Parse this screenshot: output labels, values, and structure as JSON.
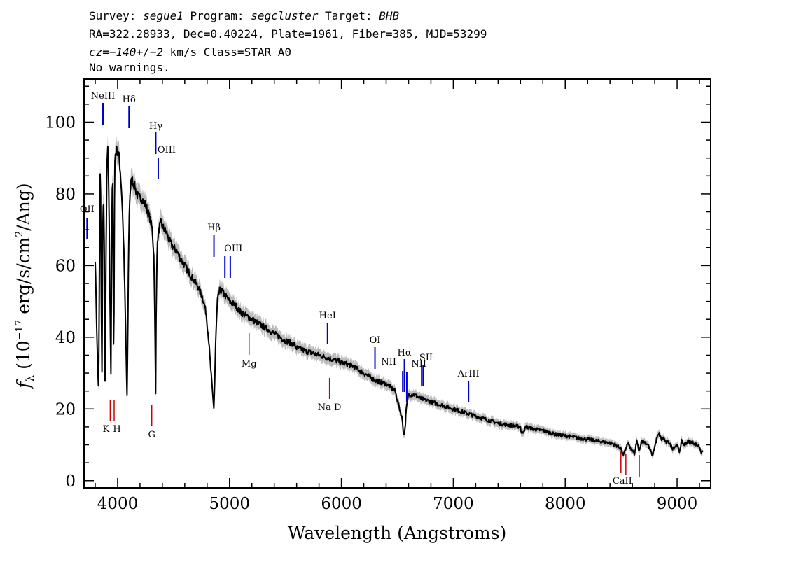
{
  "chart_data": {
    "type": "line",
    "header": {
      "line1_prefix": "Survey: ",
      "survey": "segue1",
      "line1_program_prefix": " Program: ",
      "program": "segcluster",
      "line1_target_prefix": " Target: ",
      "target": "BHB",
      "line2": "RA=322.28933, Dec=0.40224, Plate=1961, Fiber=385, MJD=53299",
      "line3_cz": "cz=−140+/−2",
      "line3_rest": " km/s Class=STAR A0",
      "line4": "No warnings."
    },
    "xlabel": "Wavelength (Angstroms)",
    "ylabel": "fλ (10⁻¹⁷ erg/s/cm²/Ang)",
    "ylabel_parts": {
      "f": "f",
      "lambda": "λ",
      "open": " (10",
      "exp1": "−17",
      "mid": " erg/s/cm",
      "exp2": "2",
      "close": "/Ang)"
    },
    "xlim": [
      3700,
      9300
    ],
    "ylim": [
      -2,
      112
    ],
    "xticks": [
      4000,
      5000,
      6000,
      7000,
      8000,
      9000
    ],
    "yticks": [
      0,
      20,
      40,
      60,
      80,
      100
    ],
    "grid": false,
    "legend": "none",
    "colors": {
      "flux": "#000000",
      "error_band": "#bdbdbd",
      "emission_marker": "#0000cc",
      "absorption_marker": "#cc0000",
      "frame": "#000000"
    },
    "series": [
      {
        "x": [
          3800,
          3815,
          3830,
          3836,
          3842,
          3847,
          3853,
          3860,
          3867,
          3875,
          3882,
          3889,
          3896,
          3904,
          3912,
          3922,
          3932,
          3940,
          3948,
          3955,
          3962,
          3966,
          3970,
          3974,
          3980,
          3990,
          4000,
          4010,
          4025,
          4040,
          4055,
          4070,
          4085,
          4095,
          4102,
          4110,
          4120,
          4130,
          4140,
          4155,
          4170,
          4190,
          4210,
          4230,
          4250,
          4270,
          4290,
          4310,
          4325,
          4335,
          4340,
          4345,
          4352,
          4360,
          4370,
          4385,
          4400,
          4420,
          4440,
          4460,
          4480,
          4500,
          4530,
          4560,
          4600,
          4640,
          4680,
          4720,
          4760,
          4790,
          4815,
          4830,
          4845,
          4855,
          4861,
          4868,
          4878,
          4892,
          4910,
          4930,
          4950,
          4980,
          5000,
          5050,
          5100,
          5150,
          5200,
          5300,
          5400,
          5500,
          5580,
          5600,
          5700,
          5800,
          5900,
          6000,
          6100,
          6200,
          6300,
          6400,
          6480,
          6520,
          6545,
          6555,
          6563,
          6570,
          6580,
          6600,
          6650,
          6700,
          6800,
          6900,
          7000,
          7100,
          7200,
          7300,
          7400,
          7500,
          7600,
          7610,
          7650,
          7700,
          7800,
          7900,
          8000,
          8100,
          8200,
          8300,
          8400,
          8450,
          8498,
          8520,
          8542,
          8560,
          8590,
          8620,
          8640,
          8662,
          8680,
          8700,
          8740,
          8780,
          8820,
          8840,
          8860,
          8880,
          8900,
          8920,
          8960,
          9000,
          9020,
          9040,
          9060,
          9100,
          9150,
          9200,
          9220,
          9230
        ],
        "y": [
          62,
          40,
          24,
          50,
          86,
          84,
          55,
          30,
          70,
          80,
          60,
          23,
          60,
          88,
          92,
          80,
          50,
          30,
          70,
          88,
          50,
          25,
          70,
          88,
          91,
          92,
          92,
          91,
          86,
          78,
          65,
          45,
          22,
          55,
          72,
          80,
          83,
          84,
          83,
          82,
          80,
          79,
          79,
          78,
          77,
          75,
          73,
          70,
          62,
          40,
          24,
          50,
          63,
          68,
          70,
          72,
          71,
          70,
          69,
          67,
          66,
          65,
          64,
          62,
          60,
          58,
          56,
          54,
          51,
          47,
          39,
          32,
          26,
          22,
          20,
          28,
          40,
          50,
          53,
          53,
          52,
          51,
          50,
          49,
          47,
          46,
          45,
          43,
          41,
          39,
          38,
          37,
          36,
          35,
          34,
          33,
          32,
          30,
          28,
          27,
          25,
          20,
          17,
          13,
          13,
          15,
          20,
          24,
          24,
          23,
          22,
          21,
          20,
          19,
          18,
          17,
          16,
          15.5,
          15,
          13,
          15,
          14.5,
          14,
          13,
          12.5,
          12,
          11.5,
          11,
          10.5,
          10,
          9,
          7,
          9,
          10.5,
          8.5,
          7.5,
          11,
          8,
          11,
          11,
          10,
          7,
          12,
          13,
          11.5,
          12,
          10.5,
          11,
          9,
          10,
          8,
          11,
          10,
          11,
          10.5,
          9.5,
          7.5,
          8.5
        ]
      }
    ],
    "lines": [
      {
        "label": "NeIII",
        "x": 3869,
        "kind": "emission"
      },
      {
        "label": "Hδ",
        "x": 4102,
        "kind": "emission"
      },
      {
        "label": "Hγ",
        "x": 4341,
        "kind": "emission"
      },
      {
        "label": "OIII",
        "x": 4363,
        "kind": "emission"
      },
      {
        "label": "OII",
        "x": 3727,
        "kind": "emission"
      },
      {
        "label": "Hβ",
        "x": 4861,
        "kind": "emission"
      },
      {
        "label": "OIII",
        "x": 4959,
        "kind": "emission"
      },
      {
        "label": "",
        "x": 5007,
        "kind": "emission"
      },
      {
        "label": "HeI",
        "x": 5876,
        "kind": "emission"
      },
      {
        "label": "OI",
        "x": 6300,
        "kind": "emission"
      },
      {
        "label": "NII",
        "x": 6548,
        "kind": "emission"
      },
      {
        "label": "Hα",
        "x": 6563,
        "kind": "emission"
      },
      {
        "label": "",
        "x": 6584,
        "kind": "emission"
      },
      {
        "label": "NII",
        "x": 6717,
        "kind": "emission"
      },
      {
        "label": "SII",
        "x": 6731,
        "kind": "emission"
      },
      {
        "label": "ArIII",
        "x": 7136,
        "kind": "emission"
      },
      {
        "label": "K",
        "x": 3934,
        "kind": "absorption"
      },
      {
        "label": "H",
        "x": 3969,
        "kind": "absorption"
      },
      {
        "label": "G",
        "x": 4305,
        "kind": "absorption"
      },
      {
        "label": "Mg",
        "x": 5175,
        "kind": "absorption"
      },
      {
        "label": "Na D",
        "x": 5894,
        "kind": "absorption"
      },
      {
        "label": "CaII",
        "x": 8498,
        "kind": "absorption"
      },
      {
        "label": "",
        "x": 8542,
        "kind": "absorption"
      },
      {
        "label": "",
        "x": 8662,
        "kind": "absorption"
      }
    ]
  }
}
